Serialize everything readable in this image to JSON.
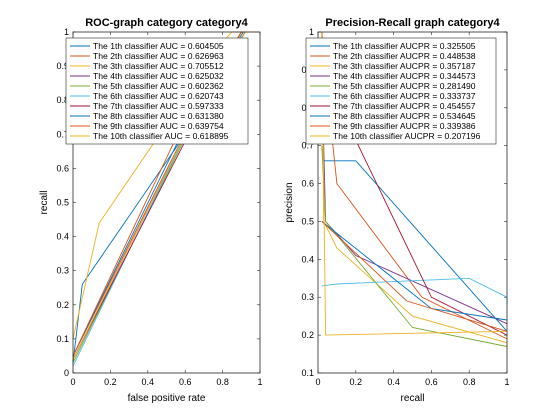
{
  "chart_data": [
    {
      "type": "line",
      "title": "ROC-graph category category4",
      "xlabel": "false positive rate",
      "ylabel": "recall",
      "xlim": [
        0,
        1
      ],
      "ylim": [
        0,
        1
      ],
      "xticks": [
        "0",
        "0.2",
        "0.4",
        "0.6",
        "0.8",
        "1"
      ],
      "yticks": [
        "0",
        "0.1",
        "0.2",
        "0.3",
        "0.4",
        "0.5",
        "0.6",
        "0.7",
        "0.8",
        "0.9",
        "1"
      ],
      "legend_position": "top-right",
      "series": [
        {
          "name": "The 1th classifier AUC = 0.604505",
          "color": "#0072BD",
          "points": [
            [
              0,
              0.03
            ],
            [
              0.05,
              0.26
            ],
            [
              0.6,
              0.7
            ],
            [
              0.92,
              1
            ],
            [
              1,
              1
            ]
          ]
        },
        {
          "name": "The 2th classifier AUC = 0.626963",
          "color": "#D95319",
          "points": [
            [
              0,
              0.05
            ],
            [
              0.55,
              0.65
            ],
            [
              0.9,
              1
            ],
            [
              1,
              1
            ]
          ]
        },
        {
          "name": "The 3th classifier AUC = 0.705512",
          "color": "#EDB120",
          "points": [
            [
              0,
              0.1
            ],
            [
              0.14,
              0.44
            ],
            [
              0.8,
              0.97
            ],
            [
              0.85,
              1
            ],
            [
              1,
              1
            ]
          ]
        },
        {
          "name": "The 4th classifier AUC = 0.625032",
          "color": "#7E2F8E",
          "points": [
            [
              0,
              0.04
            ],
            [
              0.6,
              0.7
            ],
            [
              0.92,
              1
            ],
            [
              1,
              1
            ]
          ]
        },
        {
          "name": "The 5th classifier AUC = 0.602362",
          "color": "#77AC30",
          "points": [
            [
              0,
              0.03
            ],
            [
              0.6,
              0.69
            ],
            [
              0.92,
              1
            ],
            [
              1,
              1
            ]
          ]
        },
        {
          "name": "The 6th classifier AUC = 0.620743",
          "color": "#4DBEEE",
          "points": [
            [
              0,
              0.02
            ],
            [
              0.62,
              0.72
            ],
            [
              0.92,
              1
            ],
            [
              1,
              1
            ]
          ]
        },
        {
          "name": "The 7th classifier AUC = 0.597333",
          "color": "#A2142F",
          "points": [
            [
              0,
              0.04
            ],
            [
              0.6,
              0.68
            ],
            [
              0.92,
              1
            ],
            [
              1,
              1
            ]
          ]
        },
        {
          "name": "The 8th classifier AUC = 0.631380",
          "color": "#0072BD",
          "points": [
            [
              0,
              0.05
            ],
            [
              0.58,
              0.7
            ],
            [
              0.91,
              1
            ],
            [
              1,
              1
            ]
          ]
        },
        {
          "name": "The 9th classifier AUC = 0.639754",
          "color": "#D95319",
          "points": [
            [
              0,
              0.05
            ],
            [
              0.56,
              0.7
            ],
            [
              0.9,
              1
            ],
            [
              1,
              1
            ]
          ]
        },
        {
          "name": "The 10th classifier AUC = 0.618895",
          "color": "#EDB120",
          "points": [
            [
              0,
              0.04
            ],
            [
              0.6,
              0.7
            ],
            [
              0.92,
              1
            ],
            [
              1,
              1
            ]
          ]
        }
      ]
    },
    {
      "type": "line",
      "title": "Precision-Recall graph category4",
      "xlabel": "recall",
      "ylabel": "precision",
      "xlim": [
        0,
        1
      ],
      "ylim": [
        0.1,
        1
      ],
      "xticks": [
        "0",
        "0.2",
        "0.4",
        "0.6",
        "0.8",
        "1"
      ],
      "yticks": [
        "0.1",
        "0.2",
        "0.3",
        "0.4",
        "0.5",
        "0.6",
        "0.7",
        "0.8",
        "0.9",
        "1"
      ],
      "legend_position": "top-right",
      "series": [
        {
          "name": "The 1th classifier AUCPR = 0.325505",
          "color": "#0072BD",
          "points": [
            [
              0.02,
              1
            ],
            [
              0.03,
              0.66
            ],
            [
              0.2,
              0.66
            ],
            [
              1,
              0.21
            ]
          ]
        },
        {
          "name": "The 2th classifier AUCPR = 0.448538",
          "color": "#D95319",
          "points": [
            [
              0.02,
              0.98
            ],
            [
              0.1,
              0.6
            ],
            [
              0.55,
              0.3
            ],
            [
              1,
              0.19
            ]
          ]
        },
        {
          "name": "The 3th classifier AUCPR = 0.357187",
          "color": "#EDB120",
          "points": [
            [
              0.02,
              1
            ],
            [
              0.03,
              0.5
            ],
            [
              0.1,
              0.43
            ],
            [
              0.5,
              0.25
            ],
            [
              1,
              0.18
            ]
          ]
        },
        {
          "name": "The 4th classifier AUCPR = 0.344573",
          "color": "#7E2F8E",
          "points": [
            [
              0.02,
              0.9
            ],
            [
              0.04,
              0.5
            ],
            [
              0.2,
              0.41
            ],
            [
              1,
              0.23
            ]
          ]
        },
        {
          "name": "The 5th classifier AUCPR = 0.281490",
          "color": "#77AC30",
          "points": [
            [
              0.02,
              0.7
            ],
            [
              0.04,
              0.5
            ],
            [
              0.5,
              0.22
            ],
            [
              1,
              0.17
            ]
          ]
        },
        {
          "name": "The 6th classifier AUCPR = 0.333737",
          "color": "#4DBEEE",
          "points": [
            [
              0.02,
              0.33
            ],
            [
              0.1,
              0.335
            ],
            [
              0.8,
              0.35
            ],
            [
              1,
              0.3
            ],
            [
              1,
              0.28
            ]
          ]
        },
        {
          "name": "The 7th classifier AUCPR = 0.454557",
          "color": "#A2142F",
          "points": [
            [
              0.02,
              1
            ],
            [
              0.04,
              0.88
            ],
            [
              0.6,
              0.3
            ],
            [
              1,
              0.2
            ]
          ]
        },
        {
          "name": "The 8th classifier AUCPR = 0.534645",
          "color": "#0072BD",
          "points": [
            [
              0.02,
              0.5
            ],
            [
              0.6,
              0.27
            ],
            [
              1,
              0.24
            ]
          ]
        },
        {
          "name": "The 9th classifier AUCPR = 0.339386",
          "color": "#D95319",
          "points": [
            [
              0.02,
              0.5
            ],
            [
              0.47,
              0.29
            ],
            [
              1,
              0.21
            ]
          ]
        },
        {
          "name": "The 10th classifier AUCPR = 0.207196",
          "color": "#EDB120",
          "points": [
            [
              0.02,
              1
            ],
            [
              0.04,
              0.2
            ],
            [
              1,
              0.21
            ]
          ]
        }
      ]
    }
  ]
}
